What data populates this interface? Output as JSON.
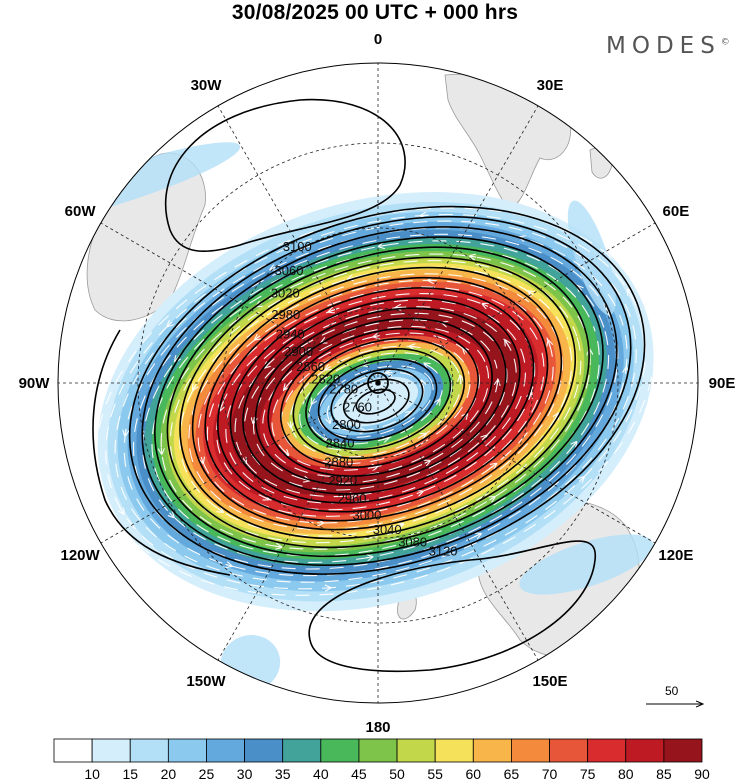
{
  "title": "30/08/2025  00 UTC  + 000 hrs",
  "brand": "MODES",
  "brand_mark": "©",
  "longitude_labels": [
    {
      "text": "0",
      "lon": 0
    },
    {
      "text": "30E",
      "lon": 30
    },
    {
      "text": "60E",
      "lon": 60
    },
    {
      "text": "90E",
      "lon": 90
    },
    {
      "text": "120E",
      "lon": 120
    },
    {
      "text": "150E",
      "lon": 150
    },
    {
      "text": "180",
      "lon": 180
    },
    {
      "text": "150W",
      "lon": -150
    },
    {
      "text": "120W",
      "lon": -120
    },
    {
      "text": "90W",
      "lon": -90
    },
    {
      "text": "60W",
      "lon": -60
    },
    {
      "text": "30W",
      "lon": -30
    }
  ],
  "contour_labels": [
    "3120",
    "3100",
    "3080",
    "3060",
    "3040",
    "3020",
    "3000",
    "2980",
    "2960",
    "2940",
    "2920",
    "2900",
    "2880",
    "2860",
    "2840",
    "2820",
    "2800",
    "2780",
    "2760"
  ],
  "colorbar": {
    "ticks": [
      "10",
      "15",
      "20",
      "25",
      "30",
      "35",
      "40",
      "45",
      "50",
      "55",
      "60",
      "65",
      "70",
      "75",
      "80",
      "85",
      "90"
    ],
    "colors": [
      "#ffffff",
      "#d4eefc",
      "#b3e0f7",
      "#8cc9ee",
      "#64a9dd",
      "#4b8fc8",
      "#41a39a",
      "#48b85a",
      "#7ec34a",
      "#c2d84a",
      "#f5e25a",
      "#f7b54a",
      "#f38a3c",
      "#e8563a",
      "#d92c2e",
      "#bd1a24",
      "#96141c"
    ]
  },
  "reference_vector": {
    "label": "50"
  },
  "colors": {
    "land": "#e8e8e8",
    "coast": "#999999",
    "contour": "#000000",
    "vector": "#ffffff"
  }
}
